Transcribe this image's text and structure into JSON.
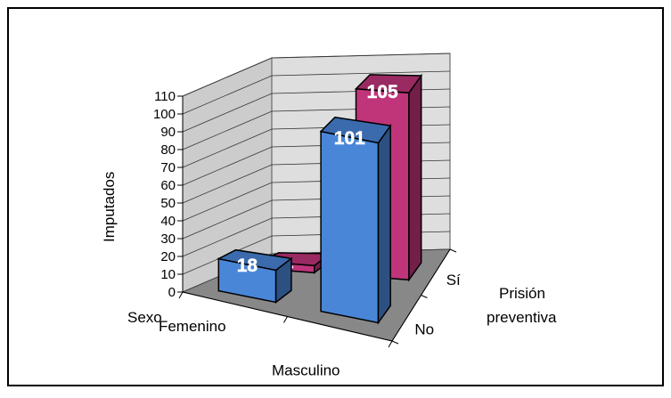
{
  "chart_data": {
    "type": "bar",
    "title": "",
    "ylabel": "Imputados",
    "xlabel": "Sexo",
    "zlabel_lines": [
      "Prisión",
      "preventiva"
    ],
    "categories": [
      "Femenino",
      "Masculino"
    ],
    "depth_categories": [
      "No",
      "Sí"
    ],
    "ylim": [
      0,
      110
    ],
    "yticks": [
      "0",
      "10",
      "20",
      "30",
      "40",
      "50",
      "60",
      "70",
      "80",
      "90",
      "100",
      "110"
    ],
    "series": [
      {
        "name": "No",
        "values": [
          18,
          101
        ],
        "color": "#4a86d8"
      },
      {
        "name": "Sí",
        "values": [
          4,
          105
        ],
        "color": "#c0347a"
      }
    ],
    "grid": true,
    "style": "3d-column"
  }
}
